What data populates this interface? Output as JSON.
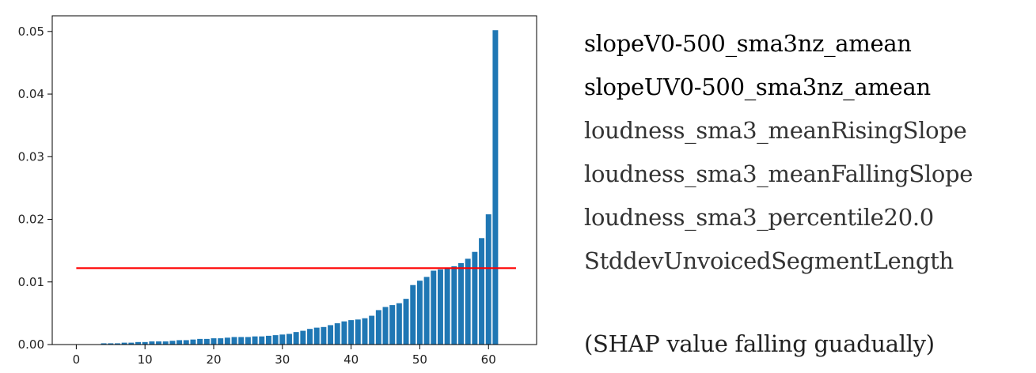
{
  "chart_data": {
    "type": "bar",
    "x": [
      0,
      1,
      2,
      3,
      4,
      5,
      6,
      7,
      8,
      9,
      10,
      11,
      12,
      13,
      14,
      15,
      16,
      17,
      18,
      19,
      20,
      21,
      22,
      23,
      24,
      25,
      26,
      27,
      28,
      29,
      30,
      31,
      32,
      33,
      34,
      35,
      36,
      37,
      38,
      39,
      40,
      41,
      42,
      43,
      44,
      45,
      46,
      47,
      48,
      49,
      50,
      51,
      52,
      53,
      54,
      55,
      56,
      57,
      58,
      59,
      60,
      61
    ],
    "values": [
      0.0,
      0.0,
      0.0,
      0.0,
      0.0002,
      0.0002,
      0.0002,
      0.0003,
      0.0003,
      0.0004,
      0.0004,
      0.0005,
      0.0005,
      0.0005,
      0.0006,
      0.0007,
      0.0007,
      0.0008,
      0.0009,
      0.0009,
      0.001,
      0.001,
      0.0011,
      0.0012,
      0.0012,
      0.0012,
      0.0013,
      0.0013,
      0.0014,
      0.0015,
      0.0016,
      0.0017,
      0.002,
      0.0022,
      0.0025,
      0.0027,
      0.0028,
      0.0031,
      0.0034,
      0.0037,
      0.0039,
      0.004,
      0.0042,
      0.0046,
      0.0055,
      0.006,
      0.0063,
      0.0066,
      0.0073,
      0.0095,
      0.0102,
      0.0108,
      0.0118,
      0.012,
      0.0123,
      0.0125,
      0.013,
      0.0137,
      0.0148,
      0.017,
      0.0208,
      0.0502
    ],
    "color": "#1f77b4",
    "threshold": {
      "y": 0.0122,
      "x_range": [
        0,
        64
      ],
      "color": "#ff0000"
    },
    "xlim": [
      -3.5,
      67
    ],
    "ylim": [
      0,
      0.0525
    ],
    "xticks": [
      0,
      10,
      20,
      30,
      40,
      50,
      60
    ],
    "yticks": [
      0,
      0.01,
      0.02,
      0.03,
      0.04,
      0.05
    ],
    "xtick_labels": [
      "0",
      "10",
      "20",
      "30",
      "40",
      "50",
      "60"
    ],
    "ytick_labels": [
      "0.00",
      "0.01",
      "0.02",
      "0.03",
      "0.04",
      "0.05"
    ],
    "title": "",
    "xlabel": "",
    "ylabel": "",
    "grid": false
  },
  "features": [
    "slopeV0-500_sma3nz_amean",
    "slopeUV0-500_sma3nz_amean",
    "loudness_sma3_meanRisingSlope",
    "loudness_sma3_meanFallingSlope",
    "loudness_sma3_percentile20.0",
    "StddevUnvoicedSegmentLength"
  ],
  "note": "(SHAP value falling guadually)"
}
